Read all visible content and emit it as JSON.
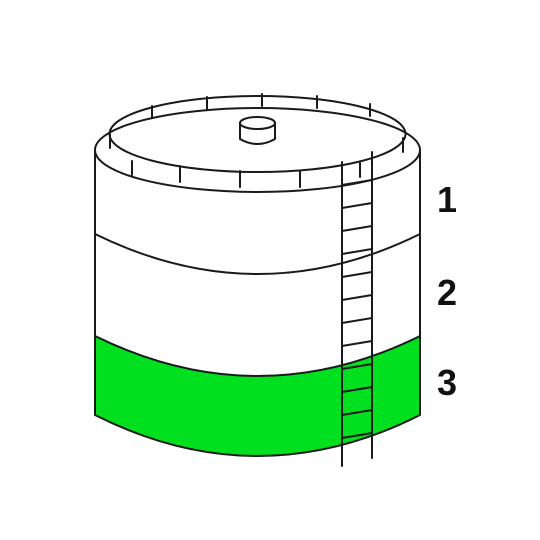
{
  "levels": [
    {
      "label": "1"
    },
    {
      "label": "2"
    },
    {
      "label": "3"
    }
  ],
  "filled_level": 3,
  "colors": {
    "fill": "#00e01e",
    "stroke": "#1a1a1a",
    "background": "#ffffff"
  }
}
